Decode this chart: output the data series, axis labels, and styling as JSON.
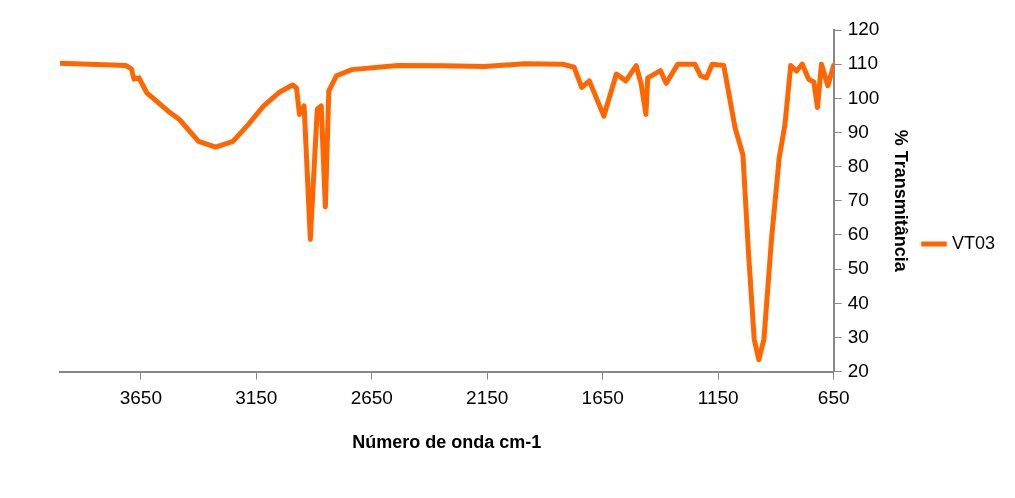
{
  "chart_data": {
    "type": "line",
    "xlabel": "Número de onda cm-1",
    "ylabel": "% Transmitância",
    "xlim": [
      4000,
      650
    ],
    "xticks": [
      3650,
      3150,
      2650,
      2150,
      1650,
      1150,
      650
    ],
    "ylim": [
      20,
      120
    ],
    "yticks": [
      20,
      30,
      40,
      50,
      60,
      70,
      80,
      90,
      100,
      110,
      120
    ],
    "grid": false,
    "legend": "right",
    "marker": "none",
    "line_style": "solid",
    "series": [
      {
        "name": "VT03",
        "color": "#ff6600",
        "x": [
          4000,
          3716,
          3691,
          3679,
          3658,
          3625,
          3533,
          3483,
          3400,
          3326,
          3251,
          3185,
          3118,
          3052,
          2993,
          2976,
          2963,
          2943,
          2916,
          2886,
          2869,
          2851,
          2836,
          2803,
          2736,
          2537,
          2338,
          2164,
          1990,
          1824,
          1774,
          1741,
          1708,
          1645,
          1591,
          1550,
          1505,
          1483,
          1463,
          1455,
          1400,
          1375,
          1325,
          1251,
          1226,
          1201,
          1176,
          1126,
          1077,
          1043,
          1019,
          994,
          974,
          952,
          919,
          886,
          861,
          836,
          811,
          786,
          758,
          736,
          720,
          703,
          675,
          650
        ],
        "values": [
          110.3,
          109.6,
          108.6,
          105.6,
          106,
          101.7,
          96.3,
          93.8,
          87.4,
          85.7,
          87.4,
          92.3,
          97.8,
          101.7,
          103.9,
          103,
          95.3,
          97.8,
          58.7,
          96.8,
          97.8,
          68.2,
          102.2,
          106.6,
          108.4,
          109.6,
          109.5,
          109.3,
          110.1,
          110,
          109.1,
          103.2,
          105.1,
          94.8,
          107.1,
          105.1,
          109.6,
          104,
          95.3,
          106,
          108.1,
          104.4,
          110,
          110,
          106.6,
          106,
          110,
          109.6,
          91.4,
          83.5,
          55,
          29.4,
          23.5,
          29.4,
          58.9,
          82.5,
          92.3,
          109.6,
          108,
          110,
          105.6,
          104.8,
          97.3,
          110,
          103.7,
          109.6
        ]
      }
    ]
  }
}
